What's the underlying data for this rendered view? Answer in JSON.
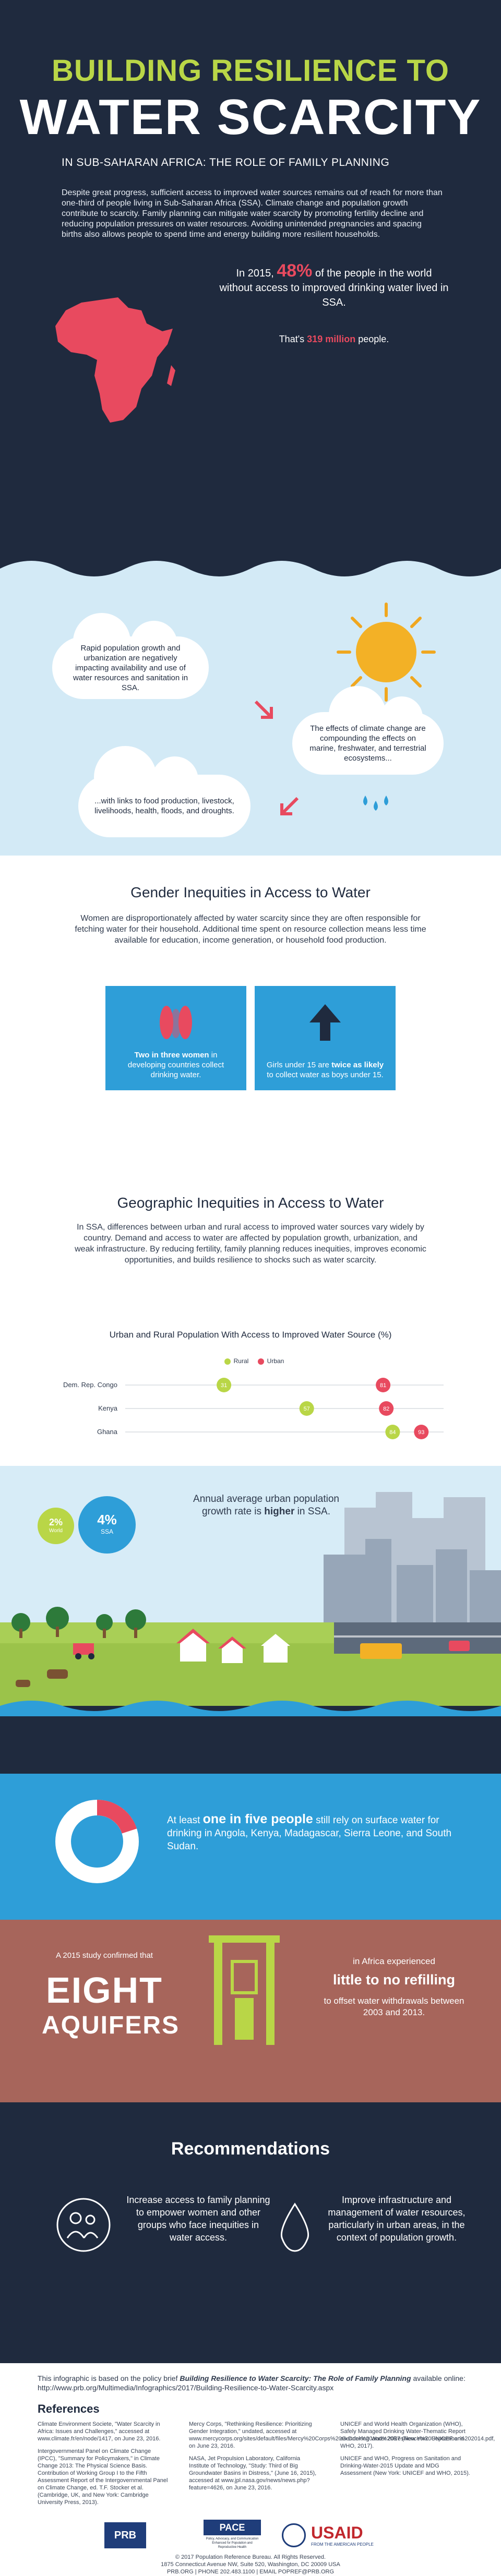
{
  "header": {
    "title_line1": "BUILDING RESILIENCE TO",
    "title_line2": "WATER SCARCITY",
    "subtitle": "IN SUB-SAHARAN AFRICA: THE ROLE OF FAMILY PLANNING",
    "intro": "Despite great progress, sufficient access to improved water sources remains out of reach for more than one-third of people living in Sub-Saharan Africa (SSA). Climate change and population growth contribute to scarcity. Family planning can mitigate water scarcity by promoting fertility decline and reducing population pressures on water resources. Avoiding unintended pregnancies and spacing births also allows people to spend time and energy building more resilient households.",
    "stat_prefix": "In 2015,",
    "stat_percent": "48%",
    "stat_suffix": "of the people in the world without access to improved drinking water lived in SSA.",
    "stat2_prefix": "That's",
    "stat2_value": "319 million",
    "stat2_suffix": "people.",
    "colors": {
      "accent_green": "#b9d647",
      "highlight_red": "#e84a5f",
      "navy": "#1f2a3e"
    }
  },
  "sky": {
    "cloud1": "Rapid population growth and urbanization are negatively impacting availability and use of water resources and sanitation in SSA.",
    "cloud2": "The effects of climate change are compounding the effects on marine, freshwater, and terrestrial ecosystems...",
    "cloud3": "...with links to food production, livestock, livelihoods, health, floods, and droughts."
  },
  "gender": {
    "title": "Gender Inequities in Access to Water",
    "text": "Women are disproportionately affected by water scarcity since they are often responsible for fetching water for their household.  Additional time spent on resource collection means less time available for education, income generation, or household food production.",
    "tile1_bold": "Two in three women",
    "tile1_rest": "in developing countries collect drinking water.",
    "tile2_first": "Girls under 15 are",
    "tile2_bold": "twice as likely",
    "tile2_rest": "to collect water as boys under 15."
  },
  "geo": {
    "title": "Geographic Inequities in Access to Water",
    "text": "In SSA, differences between urban and rural access to improved water sources vary widely by country. Demand and access to water are affected by population growth, urbanization, and weak infrastructure. By reducing fertility, family planning reduces inequities, improves economic opportunities, and builds resilience to shocks such as water scarcity."
  },
  "chart_data": {
    "type": "scatter",
    "title": "Urban and Rural Population With Access to Improved Water Source (%)",
    "categories": [
      "Dem. Rep. Congo",
      "Kenya",
      "Ghana"
    ],
    "series": [
      {
        "name": "Rural",
        "color": "#b9d647",
        "values": [
          31,
          57,
          84
        ]
      },
      {
        "name": "Urban",
        "color": "#e84a5f",
        "values": [
          81,
          82,
          93
        ]
      }
    ],
    "xlim": [
      0,
      100
    ],
    "legend": "top-center"
  },
  "city": {
    "growth_badges": [
      {
        "value": "2%",
        "label": "World"
      },
      {
        "value": "4%",
        "label": "SSA"
      }
    ],
    "growth_text_a": "Annual average urban population growth rate is",
    "growth_text_b": "higher",
    "growth_text_c": "in SSA."
  },
  "surface": {
    "share_fraction": 0.2,
    "text_a": "At least",
    "text_bold": "one in five people",
    "text_b": "still rely on surface water for drinking in Angola, Kenya, Madagascar, Sierra Leone, and South Sudan."
  },
  "aquifer": {
    "line1": "A 2015 study confirmed that",
    "big1": "EIGHT",
    "big2": "AQUIFERS",
    "right1": "in Africa experienced",
    "right_bold": "little to no refilling",
    "right2": "to offset water withdrawals between 2003 and 2013."
  },
  "recommendations": {
    "title": "Recommendations",
    "items": [
      {
        "icon": "people-icon",
        "text": "Increase access to family planning to empower women and other groups who face inequities in water access."
      },
      {
        "icon": "water-drop-icon",
        "text": "Improve infrastructure and management of water resources, particularly in urban areas, in the context of population growth."
      }
    ]
  },
  "footer": {
    "brief_a": "This infographic is based on the policy brief",
    "brief_title": "Building Resilience to Water Scarcity: The Role of Family Planning",
    "brief_b": "available online: http://www.prb.org/Multimedia/Infographics/2017/Building-Resilience-to-Water-Scarcity.aspx",
    "references_title": "References",
    "references": [
      [
        "Climate Environment Societe, \"Water Scarcity in Africa: Issues and Challenges,\" accessed at www.climate.fr/en/node/1417, on June 23, 2016.",
        "Intergovernmental Panel on Climate Change (IPCC), \"Summary for Policymakers,\" in Climate Change 2013: The Physical Science Basis. Contribution of Working Group I to the Fifth Assessment Report of the Intergovernmental Panel on Climate Change, ed. T.F. Stocker et al. (Cambridge, UK, and New York: Cambridge University Press, 2013)."
      ],
      [
        "Mercy Corps, \"Rethinking Resilience: Prioritizing Gender Integration,\" undated, accessed at www.mercycorps.org/sites/default/files/Mercy%20Corps%20Gender%20and%20Resilience%20September%202014.pdf, on June 23, 2016.",
        "NASA, Jet Propulsion Laboratory, California Institute of Technology, \"Study: Third of Big Groundwater Basins in Distress,\" (June 16, 2015), accessed at www.jpl.nasa.gov/news/news.php?feature=4626, on June 23, 2016."
      ],
      [
        "UNICEF and World Health Organization (WHO), Safely Managed Drinking Water-Thematic Report on Drinking Water 2017 (New York: UNICEF and WHO, 2017).",
        "UNICEF and WHO, Progress on Sanitation and Drinking-Water-2015 Update and MDG Assessment (New York: UNICEF and WHO, 2015)."
      ]
    ],
    "logos": {
      "prb": "PRB",
      "pace": "PACE",
      "pace_sub": "Policy, Advocacy, and Communication Enhanced for Population and Reproductive Health",
      "usaid": "USAID",
      "usaid_sub": "FROM THE AMERICAN PEOPLE"
    },
    "copyright_1": "© 2017 Population Reference Bureau. All Rights Reserved.",
    "copyright_2": "1875 Connecticut Avenue NW, Suite 520, Washington, DC 20009 USA",
    "copyright_3": "PRB.ORG  |  PHONE 202.483.1100  |  EMAIL POPREF@PRB.ORG"
  }
}
